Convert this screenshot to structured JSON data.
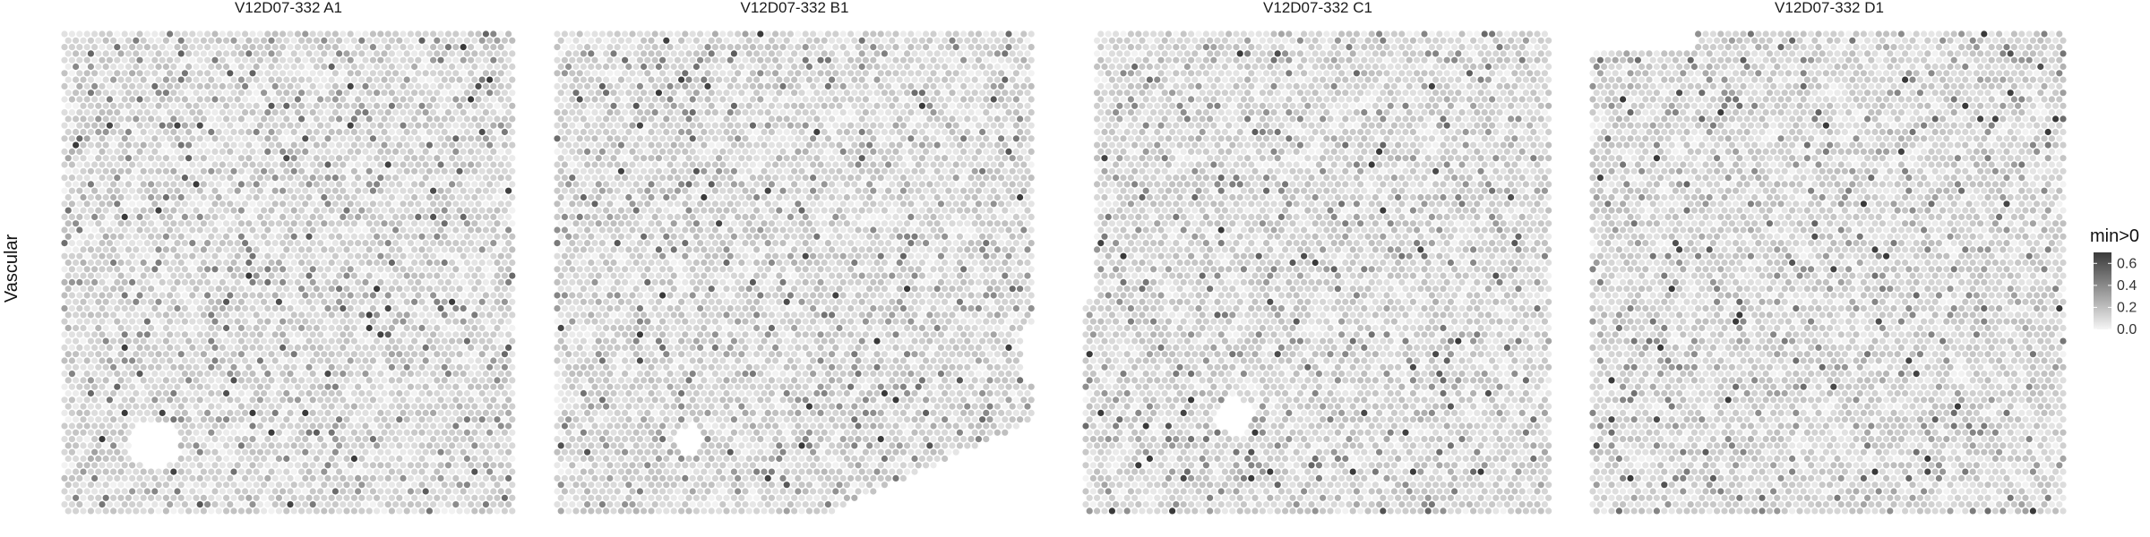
{
  "chart_data": {
    "type": "heatmap",
    "row_label": "Vascular",
    "facets": [
      {
        "title": "V12D07-332  A1",
        "seed": 11,
        "holes": [
          [
            0.2,
            0.85,
            0.055
          ]
        ],
        "cut": null,
        "notch_left": false
      },
      {
        "title": "V12D07-332  B1",
        "seed": 23,
        "holes": [
          [
            0.28,
            0.84,
            0.03
          ]
        ],
        "cut": "bottom-right",
        "notch_left": false
      },
      {
        "title": "V12D07-332  C1",
        "seed": 37,
        "holes": [
          [
            0.32,
            0.79,
            0.04
          ]
        ],
        "cut": null,
        "notch_left": true
      },
      {
        "title": "V12D07-332  D1",
        "seed": 51,
        "holes": [],
        "cut": null,
        "notch_left": false
      }
    ],
    "legend": {
      "title": "min>0",
      "ticks": [
        0.0,
        0.2,
        0.4,
        0.6
      ],
      "tick_labels": [
        "0.0",
        "0.2",
        "0.4",
        "0.6"
      ],
      "range": [
        0,
        0.7
      ],
      "low_color": "#f5f5f5",
      "high_color": "#3a3a3a",
      "placement": "right"
    },
    "grid": false
  }
}
